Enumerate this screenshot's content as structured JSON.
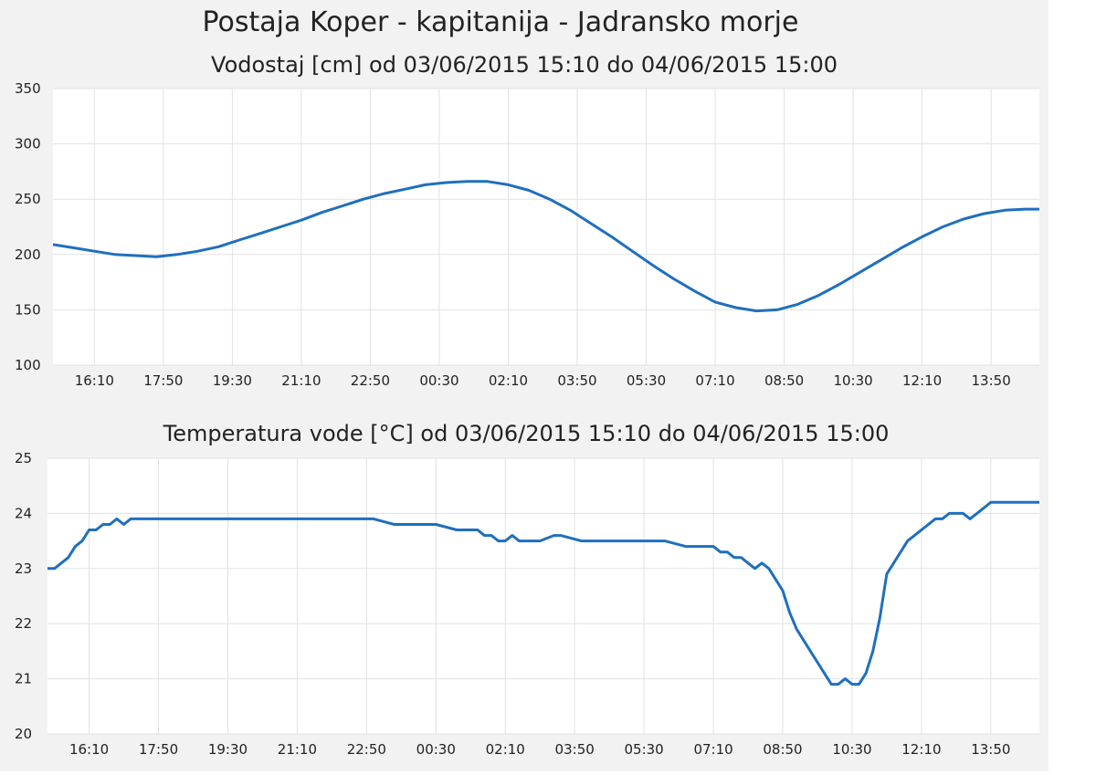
{
  "page": {
    "title": "Postaja Koper - kapitanija - Jadransko morje"
  },
  "colors": {
    "line": "#1f6fbf",
    "grid": "#e2e2e2",
    "plot_bg": "#ffffff",
    "panel_bg": "#f2f2f2"
  },
  "chart_data": [
    {
      "type": "line",
      "title": "Vodostaj [cm] od 03/06/2015 15:10 do 04/06/2015 15:00",
      "xlabel": "",
      "ylabel": "",
      "x_ticks": [
        "16:10",
        "17:50",
        "19:30",
        "21:10",
        "22:50",
        "00:30",
        "02:10",
        "03:50",
        "05:30",
        "07:10",
        "08:50",
        "10:30",
        "12:10",
        "13:50"
      ],
      "ylim": [
        100,
        350
      ],
      "yticks": [
        "350",
        "300",
        "250",
        "200",
        "150",
        "100"
      ],
      "grid": true,
      "series": [
        {
          "x": [
            "15:10",
            "15:40",
            "16:10",
            "16:40",
            "17:10",
            "17:40",
            "18:10",
            "18:40",
            "19:10",
            "19:40",
            "20:10",
            "20:40",
            "21:10",
            "21:40",
            "22:10",
            "22:40",
            "23:10",
            "23:40",
            "00:10",
            "00:40",
            "01:10",
            "01:40",
            "02:10",
            "02:40",
            "03:10",
            "03:40",
            "04:10",
            "04:40",
            "05:10",
            "05:40",
            "06:10",
            "06:40",
            "07:10",
            "07:40",
            "08:10",
            "08:40",
            "09:10",
            "09:40",
            "10:10",
            "10:40",
            "11:10",
            "11:40",
            "12:10",
            "12:40",
            "13:10",
            "13:40",
            "14:10",
            "14:40",
            "15:00"
          ],
          "values": [
            209,
            206,
            203,
            200,
            199,
            198,
            200,
            203,
            207,
            213,
            219,
            225,
            231,
            238,
            244,
            250,
            255,
            259,
            263,
            265,
            266,
            266,
            263,
            258,
            250,
            240,
            228,
            216,
            203,
            190,
            178,
            167,
            157,
            152,
            149,
            150,
            155,
            163,
            173,
            184,
            195,
            206,
            216,
            225,
            232,
            237,
            240,
            241,
            241
          ]
        }
      ]
    },
    {
      "type": "line",
      "title": "Temperatura vode [°C] od 03/06/2015 15:10 do 04/06/2015 15:00",
      "xlabel": "",
      "ylabel": "",
      "x_ticks": [
        "16:10",
        "17:50",
        "19:30",
        "21:10",
        "22:50",
        "00:30",
        "02:10",
        "03:50",
        "05:30",
        "07:10",
        "08:50",
        "10:30",
        "12:10",
        "13:50"
      ],
      "ylim": [
        20,
        25
      ],
      "yticks": [
        "25",
        "24",
        "23",
        "22",
        "21",
        "20"
      ],
      "grid": true,
      "series": [
        {
          "x": [
            "15:10",
            "15:20",
            "15:30",
            "15:40",
            "15:50",
            "16:00",
            "16:10",
            "16:20",
            "16:30",
            "16:40",
            "16:50",
            "17:00",
            "17:10",
            "17:20",
            "17:30",
            "21:00",
            "22:30",
            "23:00",
            "23:30",
            "00:30",
            "01:00",
            "01:30",
            "01:40",
            "01:50",
            "02:00",
            "02:10",
            "02:20",
            "02:30",
            "02:40",
            "03:00",
            "03:20",
            "03:30",
            "04:00",
            "04:30",
            "05:00",
            "05:30",
            "06:00",
            "06:30",
            "06:40",
            "06:50",
            "07:00",
            "07:10",
            "07:20",
            "07:30",
            "07:40",
            "07:50",
            "08:00",
            "08:10",
            "08:20",
            "08:30",
            "08:40",
            "08:50",
            "09:00",
            "09:10",
            "09:20",
            "09:30",
            "09:40",
            "09:50",
            "10:00",
            "10:10",
            "10:20",
            "10:30",
            "10:40",
            "10:50",
            "11:00",
            "11:10",
            "11:20",
            "11:30",
            "11:40",
            "11:50",
            "12:00",
            "12:10",
            "12:20",
            "12:30",
            "12:40",
            "12:50",
            "13:00",
            "13:10",
            "13:20",
            "13:30",
            "13:40",
            "13:50",
            "14:00",
            "14:10",
            "14:20",
            "14:30",
            "14:40",
            "14:50",
            "15:00"
          ],
          "values": [
            23.0,
            23.0,
            23.1,
            23.2,
            23.4,
            23.5,
            23.7,
            23.7,
            23.8,
            23.8,
            23.9,
            23.8,
            23.9,
            23.9,
            23.9,
            23.9,
            23.9,
            23.9,
            23.8,
            23.8,
            23.7,
            23.7,
            23.6,
            23.6,
            23.5,
            23.5,
            23.6,
            23.5,
            23.5,
            23.5,
            23.6,
            23.6,
            23.5,
            23.5,
            23.5,
            23.5,
            23.5,
            23.4,
            23.4,
            23.4,
            23.4,
            23.4,
            23.3,
            23.3,
            23.2,
            23.2,
            23.1,
            23.0,
            23.1,
            23.0,
            22.8,
            22.6,
            22.2,
            21.9,
            21.7,
            21.5,
            21.3,
            21.1,
            20.9,
            20.9,
            21.0,
            20.9,
            20.9,
            21.1,
            21.5,
            22.1,
            22.9,
            23.1,
            23.3,
            23.5,
            23.6,
            23.7,
            23.8,
            23.9,
            23.9,
            24.0,
            24.0,
            24.0,
            23.9,
            24.0,
            24.1,
            24.2,
            24.2,
            24.2,
            24.2,
            24.2,
            24.2,
            24.2,
            24.2
          ]
        }
      ]
    }
  ]
}
